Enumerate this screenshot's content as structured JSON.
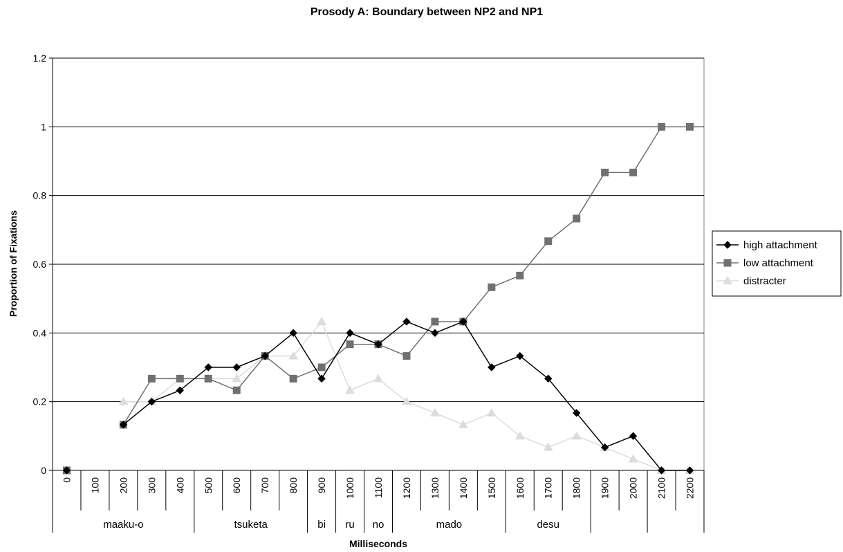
{
  "chart_data": {
    "type": "line",
    "title": "Prosody A: Boundary between NP2 and NP1",
    "xlabel": "Milliseconds",
    "ylabel": "Proportion of Fixations",
    "categories": [
      "0",
      "100",
      "200",
      "300",
      "400",
      "500",
      "600",
      "700",
      "800",
      "900",
      "1000",
      "1100",
      "1200",
      "1300",
      "1400",
      "1500",
      "1600",
      "1700",
      "1800",
      "1900",
      "2000",
      "2100",
      "2200"
    ],
    "word_segments": [
      {
        "label": "maaku-o",
        "start": 0,
        "end": 5
      },
      {
        "label": "tsuketa",
        "start": 5,
        "end": 9
      },
      {
        "label": "bi",
        "start": 9,
        "end": 10
      },
      {
        "label": "ru",
        "start": 10,
        "end": 11
      },
      {
        "label": "no",
        "start": 11,
        "end": 12
      },
      {
        "label": "mado",
        "start": 12,
        "end": 16
      },
      {
        "label": "desu",
        "start": 16,
        "end": 19
      }
    ],
    "segment_boundaries": [
      5,
      9,
      10,
      11,
      12,
      16,
      19,
      21,
      23
    ],
    "ylim": [
      0,
      1.2
    ],
    "yticks": [
      "0",
      "0.2",
      "0.4",
      "0.6",
      "0.8",
      "1",
      "1.2"
    ],
    "grid": true,
    "legend_position": "right",
    "series": [
      {
        "name": "high attachment",
        "color": "#000000",
        "marker": "diamond",
        "values": [
          0,
          null,
          0.133,
          0.2,
          0.233,
          0.3,
          0.3,
          0.333,
          0.4,
          0.267,
          0.4,
          0.367,
          0.433,
          0.4,
          0.433,
          0.3,
          0.333,
          0.267,
          0.167,
          0.067,
          0.1,
          0,
          0
        ]
      },
      {
        "name": "low attachment",
        "color": "#707070",
        "marker": "square",
        "values": [
          0,
          null,
          0.133,
          0.267,
          0.267,
          0.267,
          0.233,
          0.333,
          0.267,
          0.3,
          0.367,
          0.367,
          0.333,
          0.433,
          0.433,
          0.533,
          0.567,
          0.667,
          0.733,
          0.867,
          0.867,
          1,
          1
        ]
      },
      {
        "name": "distracter",
        "color": "#dcdcdc",
        "marker": "triangle",
        "values": [
          0,
          null,
          0.2,
          0.2,
          0.267,
          0.267,
          0.267,
          0.333,
          0.333,
          0.433,
          0.233,
          0.267,
          0.2,
          0.167,
          0.133,
          0.167,
          0.1,
          0.067,
          0.1,
          0.067,
          0.033,
          0,
          0
        ]
      }
    ]
  }
}
